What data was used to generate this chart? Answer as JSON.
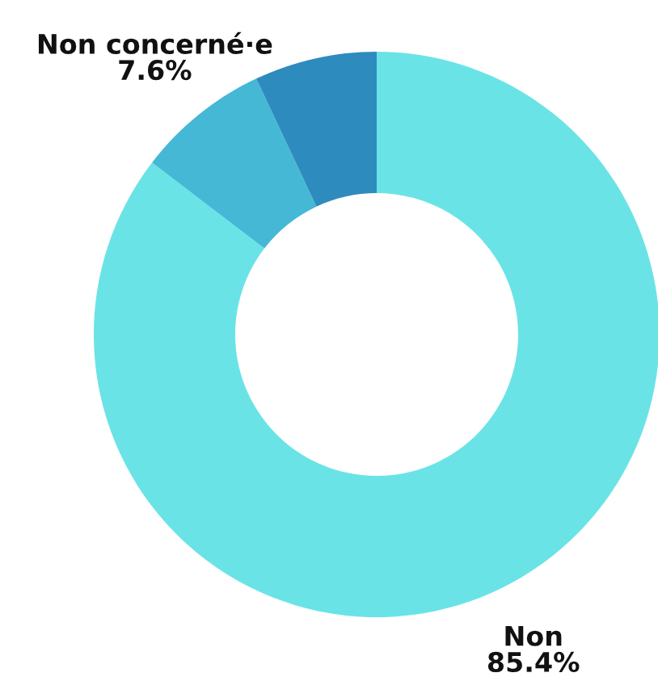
{
  "chart_data": {
    "type": "donut",
    "categories": [
      "Non",
      "Non concerné·e",
      null
    ],
    "values": [
      85.4,
      7.6,
      7.0
    ],
    "value_labels": [
      "85.4%",
      "7.6%",
      null
    ],
    "colors": [
      "#6ae3e6",
      "#45b8d6",
      "#2e8bbd"
    ],
    "legend": false
  }
}
